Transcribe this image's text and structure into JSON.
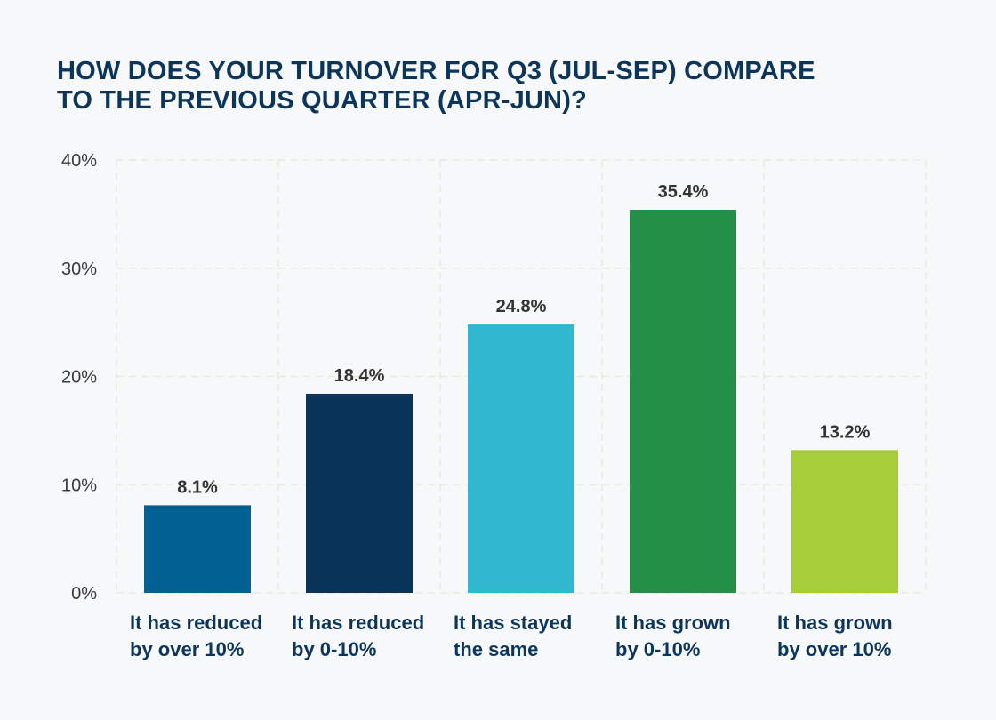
{
  "chart_data": {
    "type": "bar",
    "title_lines": [
      "HOW DOES YOUR TURNOVER FOR Q3 (JUL-SEP) COMPARE",
      "TO THE PREVIOUS QUARTER (APR-JUN)?"
    ],
    "title": "HOW DOES YOUR TURNOVER FOR Q3 (JUL-SEP) COMPARE TO THE PREVIOUS QUARTER (APR-JUN)?",
    "xlabel": "",
    "ylabel": "",
    "ylim": [
      0,
      40
    ],
    "yticks": [
      0,
      10,
      20,
      30,
      40
    ],
    "ytick_labels": [
      "0%",
      "10%",
      "20%",
      "30%",
      "40%"
    ],
    "grid": true,
    "legend": "none",
    "categories": [
      [
        "It has reduced",
        "by over 10%"
      ],
      [
        "It has reduced",
        "by 0-10%"
      ],
      [
        "It has stayed",
        "the same"
      ],
      [
        "It has grown",
        "by 0-10%"
      ],
      [
        "It has grown",
        "by over 10%"
      ]
    ],
    "values": [
      8.1,
      18.4,
      24.8,
      35.4,
      13.2
    ],
    "value_labels": [
      "8.1%",
      "18.4%",
      "24.8%",
      "35.4%",
      "13.2%"
    ],
    "colors": [
      "#036293",
      "#0a3457",
      "#31b7d0",
      "#248f47",
      "#a8cd3a"
    ]
  }
}
